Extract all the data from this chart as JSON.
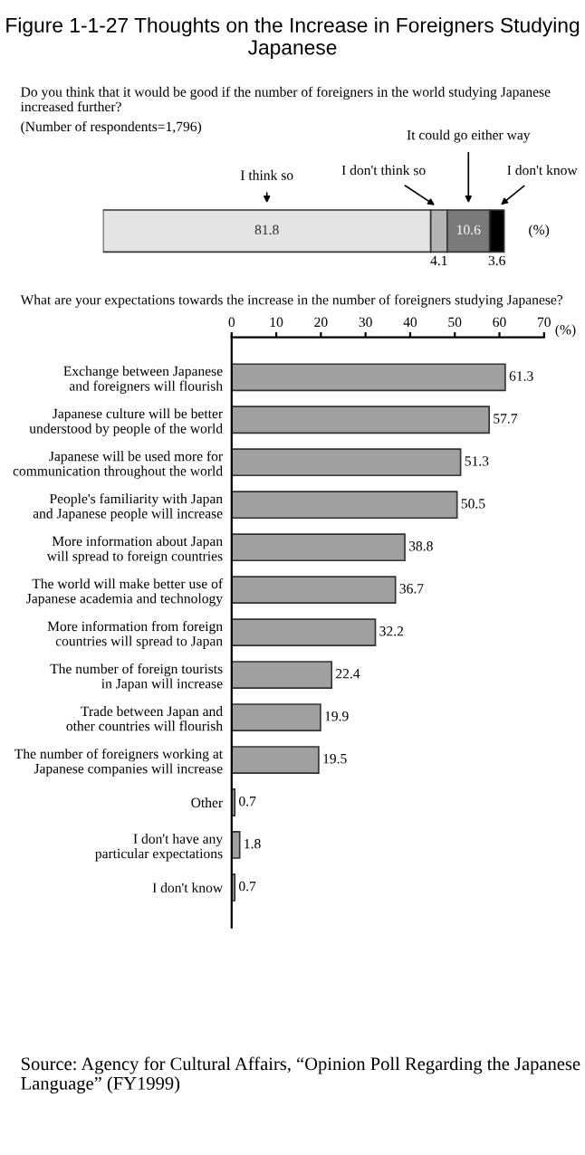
{
  "chart_data": [
    {
      "type": "bar",
      "orientation": "horizontal",
      "stacked": true,
      "title": "Figure 1-1-27 Thoughts on the Increase in Foreigners Studying Japanese",
      "subtitle": "Do you think that it would be good if the number of foreigners in the world studying Japanese increased further?",
      "xlabel": "(%)",
      "annotations": [
        "(Number of respondents=1,796)"
      ],
      "categories": [
        null
      ],
      "tick_labels": false,
      "series": [
        {
          "name": "I think so",
          "color": "#e4e4e4",
          "values": [
            81.8
          ],
          "value_labels": [
            "81.8"
          ]
        },
        {
          "name": "I don't think so",
          "color": "#b4b4b4",
          "values": [
            4.1
          ],
          "value_labels": [
            "4.1"
          ]
        },
        {
          "name": "It could go either way",
          "color": "#7a7a7a",
          "values": [
            10.6
          ],
          "value_labels": [
            "10.6"
          ]
        },
        {
          "name": "I don't know",
          "color": "#000000",
          "values": [
            3.6
          ],
          "value_labels": [
            "3.6"
          ]
        }
      ]
    },
    {
      "type": "bar",
      "orientation": "horizontal",
      "title": "What are your expectations towards the increase in the number of foreigners studying Japanese?",
      "xlabel": "(%)",
      "annotations": [
        "Source: Agency for Cultural Affairs, “Opinion Poll Regarding the Japanese Language” (FY1999)"
      ],
      "categories": [
        "Exchange between Japanese\nand foreigners will flourish",
        "Japanese culture will be better\nunderstood by people of the world",
        "Japanese will be used more for\ncommunication throughout the world",
        "People's familiarity with Japan\nand Japanese people will increase",
        "More information about Japan\nwill spread to foreign countries",
        "The world will make better use of\nJapanese academia and technology",
        "More information from foreign\ncountries will spread to Japan",
        "The number of foreign tourists\nin Japan will increase",
        "Trade between Japan and\nother countries will flourish",
        "The number of foreigners working at\nJapanese companies will increase",
        "Other",
        "I don't have any\nparticular expectations",
        "I don't know"
      ],
      "values": [
        61.3,
        57.7,
        51.3,
        50.5,
        38.8,
        36.7,
        32.2,
        22.4,
        19.9,
        19.5,
        0.7,
        1.8,
        0.7
      ],
      "color": "#a0a0a0",
      "xlim": [
        0,
        70
      ],
      "xticks": [
        0,
        10,
        20,
        30,
        40,
        50,
        60,
        70
      ],
      "data_labels": true
    }
  ]
}
